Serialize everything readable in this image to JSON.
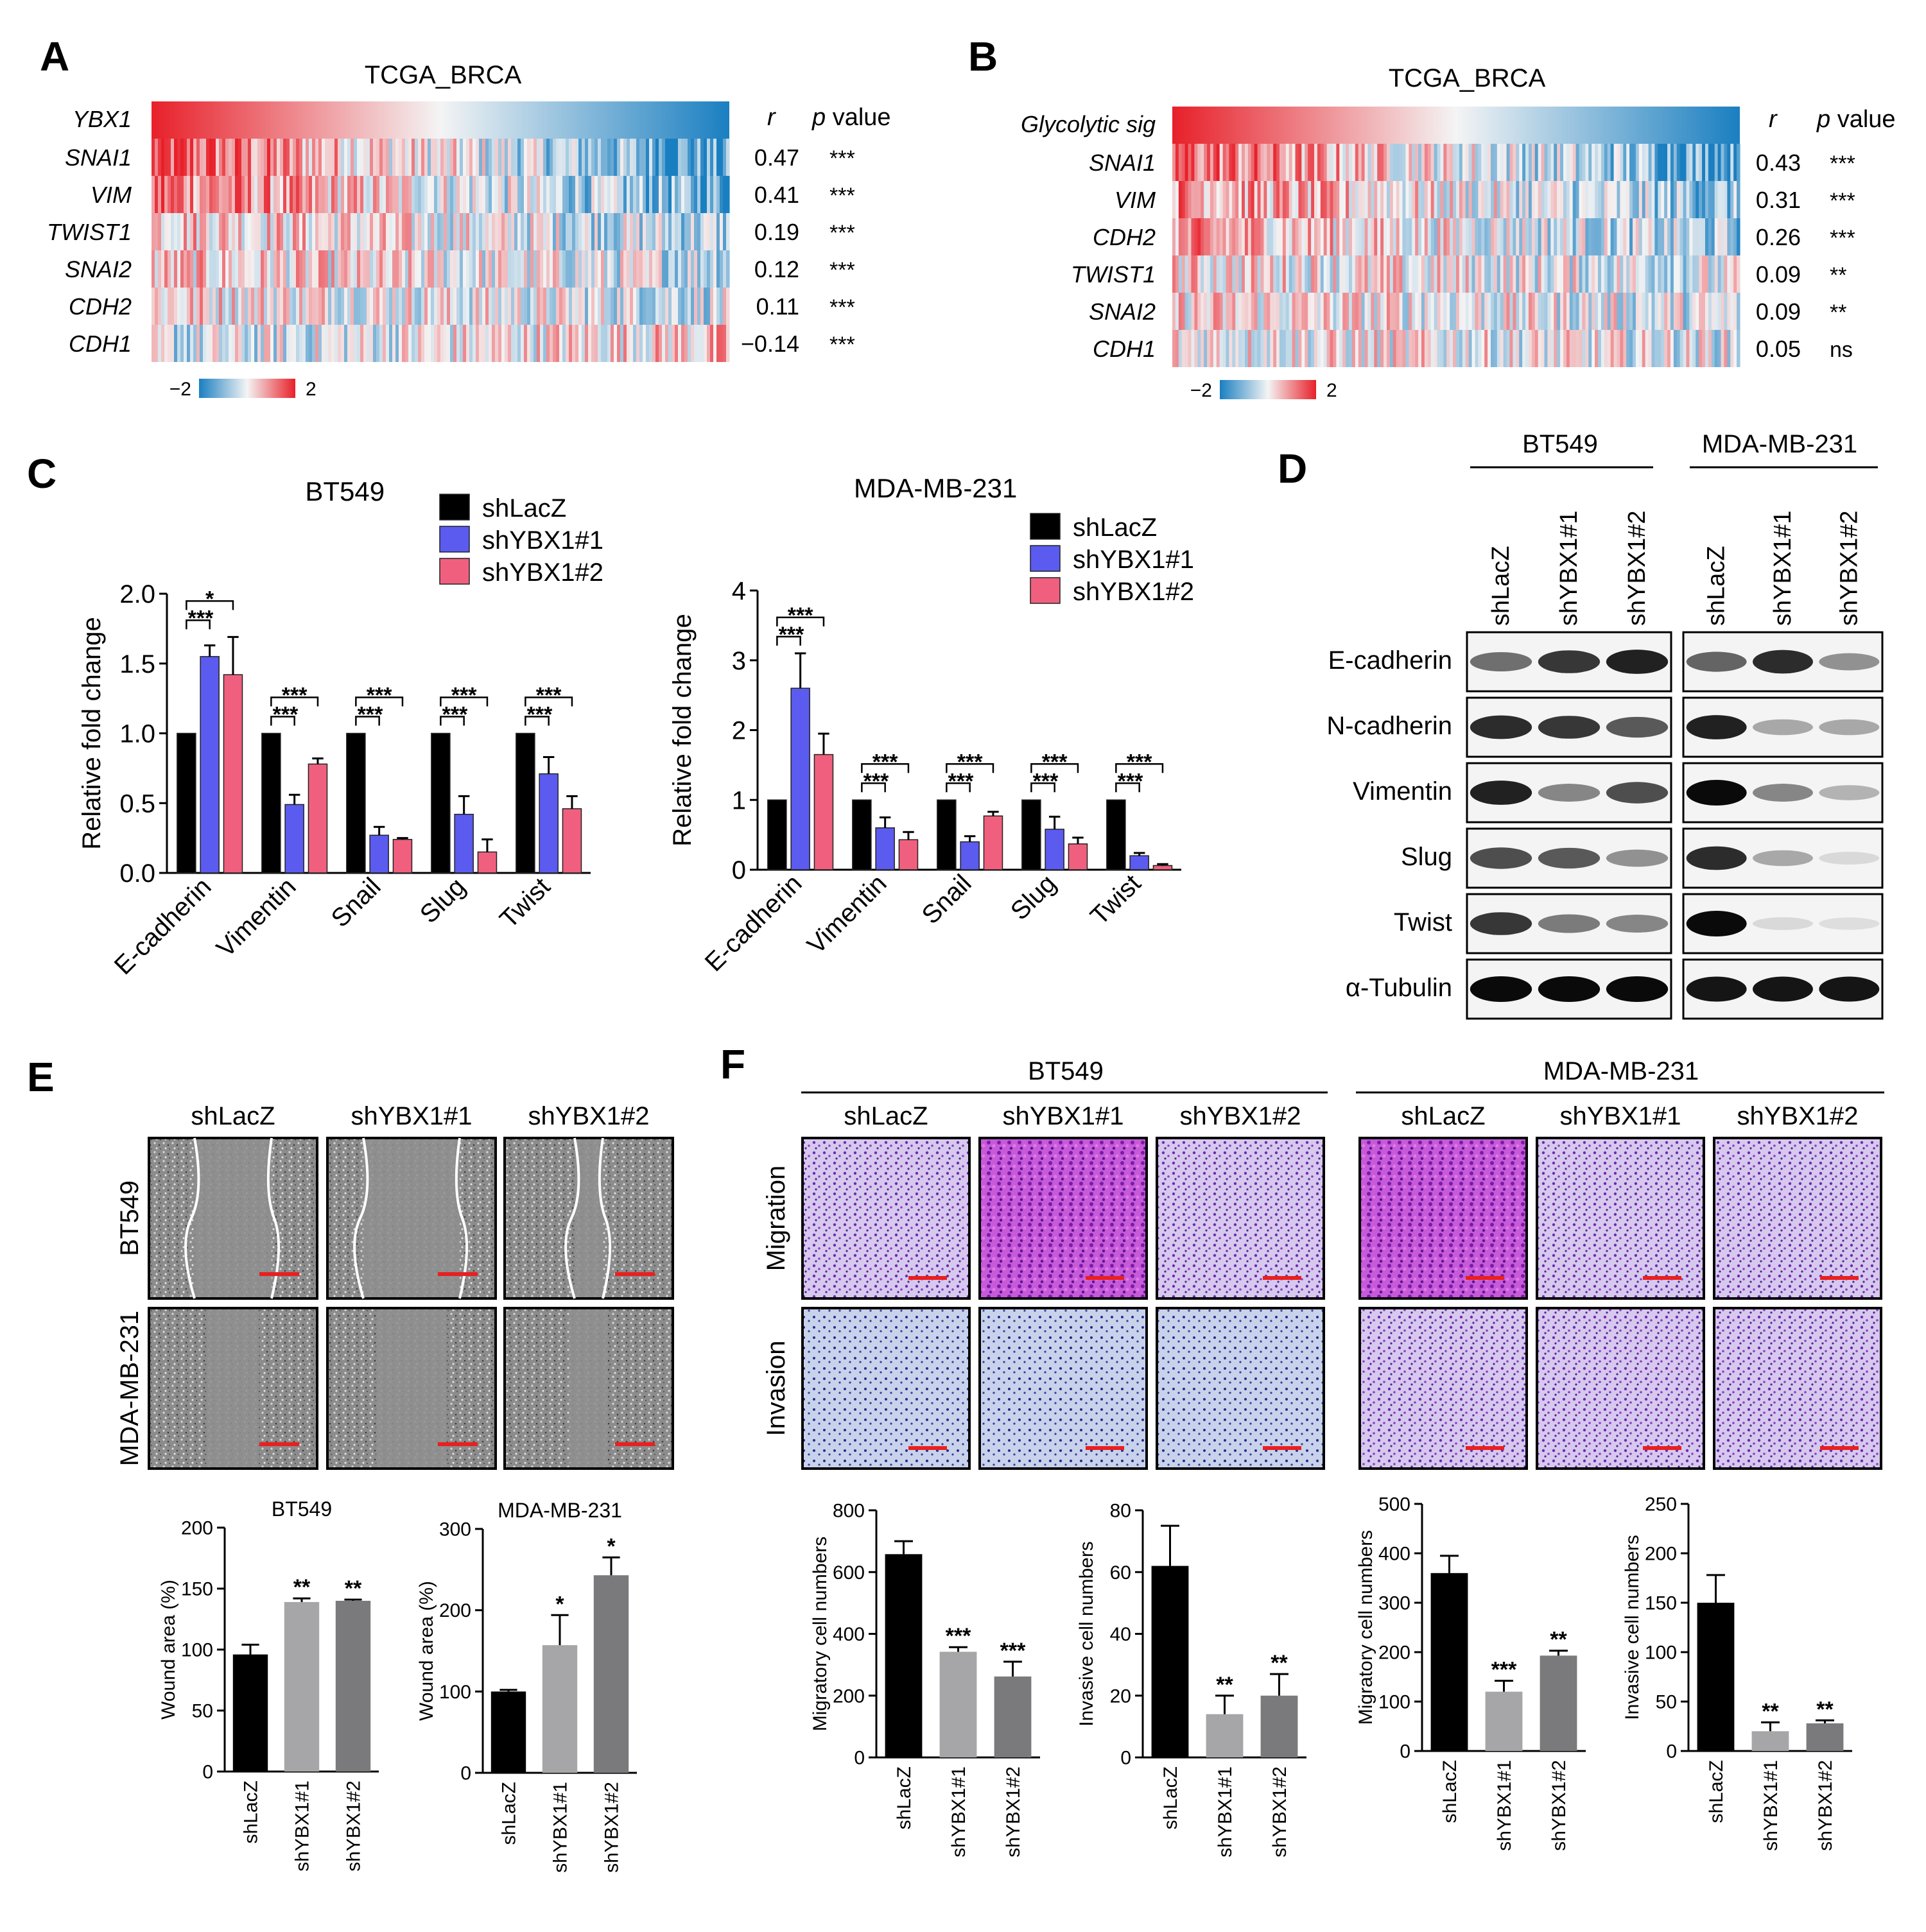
{
  "colors": {
    "heat_high": "#e8202a",
    "heat_low": "#1a7fc1",
    "heat_mid": "#f2f2f2",
    "shLacZ": "#000000",
    "shYBX1_1_blue": "#5b5bf0",
    "shYBX1_2_pink": "#f0607e",
    "gray1": "#a6a6a8",
    "gray2": "#7a7a7c",
    "scale_bar": "#e82020"
  },
  "panel_a": {
    "letter": "A",
    "title": "TCGA_BRCA",
    "top_row": "YBX1",
    "col_r": "r",
    "col_p": "p value",
    "rows": [
      {
        "gene": "SNAI1",
        "r": "0.47",
        "p": "***"
      },
      {
        "gene": "VIM",
        "r": "0.41",
        "p": "***"
      },
      {
        "gene": "TWIST1",
        "r": "0.19",
        "p": "***"
      },
      {
        "gene": "SNAI2",
        "r": "0.12",
        "p": "***"
      },
      {
        "gene": "CDH2",
        "r": "0.11",
        "p": "***"
      },
      {
        "gene": "CDH1",
        "r": "−0.14",
        "p": "***"
      }
    ],
    "legend_min": "−2",
    "legend_max": "2"
  },
  "panel_b": {
    "letter": "B",
    "title": "TCGA_BRCA",
    "top_row": "Glycolytic sig",
    "col_r": "r",
    "col_p": "p value",
    "rows": [
      {
        "gene": "SNAI1",
        "r": "0.43",
        "p": "***"
      },
      {
        "gene": "VIM",
        "r": "0.31",
        "p": "***"
      },
      {
        "gene": "CDH2",
        "r": "0.26",
        "p": "***"
      },
      {
        "gene": "TWIST1",
        "r": "0.09",
        "p": "**"
      },
      {
        "gene": "SNAI2",
        "r": "0.09",
        "p": "**"
      },
      {
        "gene": "CDH1",
        "r": "0.05",
        "p": "ns"
      }
    ],
    "legend_min": "−2",
    "legend_max": "2"
  },
  "chart_data": [
    {
      "id": "C-BT549",
      "type": "bar",
      "title": "BT549",
      "ylabel": "Relative fold change",
      "categories": [
        "E-cadherin",
        "Vimentin",
        "Snail",
        "Slug",
        "Twist"
      ],
      "series": [
        {
          "name": "shLacZ",
          "values": [
            1.0,
            1.0,
            1.0,
            1.0,
            1.0
          ],
          "errors": [
            0,
            0,
            0,
            0,
            0
          ]
        },
        {
          "name": "shYBX1#1",
          "values": [
            1.55,
            0.49,
            0.27,
            0.42,
            0.71
          ],
          "errors": [
            0.08,
            0.07,
            0.06,
            0.13,
            0.12
          ]
        },
        {
          "name": "shYBX1#2",
          "values": [
            1.42,
            0.78,
            0.24,
            0.15,
            0.46
          ],
          "errors": [
            0.27,
            0.04,
            0.01,
            0.09,
            0.09
          ]
        }
      ],
      "ylim": [
        0,
        2.0
      ],
      "yticks": [
        "0.0",
        "0.5",
        "1.0",
        "1.5",
        "2.0"
      ],
      "sig_upper": [
        "*",
        "***",
        "***",
        "***",
        "***"
      ],
      "sig_lower": [
        "***",
        "***",
        "***",
        "***",
        "***"
      ]
    },
    {
      "id": "C-MDA",
      "type": "bar",
      "title": "MDA-MB-231",
      "ylabel": "Relative fold change",
      "categories": [
        "E-cadherin",
        "Vimentin",
        "Snail",
        "Slug",
        "Twist"
      ],
      "series": [
        {
          "name": "shLacZ",
          "values": [
            1.0,
            1.0,
            1.0,
            1.0,
            1.0
          ],
          "errors": [
            0,
            0,
            0,
            0,
            0
          ]
        },
        {
          "name": "shYBX1#1",
          "values": [
            2.6,
            0.6,
            0.4,
            0.58,
            0.2
          ],
          "errors": [
            0.5,
            0.15,
            0.08,
            0.18,
            0.04
          ]
        },
        {
          "name": "shYBX1#2",
          "values": [
            1.65,
            0.43,
            0.77,
            0.37,
            0.06
          ],
          "errors": [
            0.3,
            0.11,
            0.06,
            0.09,
            0.02
          ]
        }
      ],
      "ylim": [
        0,
        4
      ],
      "yticks": [
        "0",
        "1",
        "2",
        "3",
        "4"
      ],
      "sig_upper": [
        "***",
        "***",
        "***",
        "***",
        "***"
      ],
      "sig_lower": [
        "***",
        "***",
        "***",
        "***",
        "***"
      ]
    },
    {
      "id": "E-BT549",
      "type": "bar",
      "title": "BT549",
      "ylabel": "Wound area (%)",
      "categories": [
        "shLacZ",
        "shYBX1#1",
        "shYBX1#2"
      ],
      "values": [
        96,
        139,
        140
      ],
      "errors": [
        8,
        3,
        1
      ],
      "sig": [
        "",
        "**",
        "**"
      ],
      "ylim": [
        0,
        200
      ],
      "yticks": [
        "0",
        "50",
        "100",
        "150",
        "200"
      ]
    },
    {
      "id": "E-MDA",
      "type": "bar",
      "title": "MDA-MB-231",
      "ylabel": "Wound area (%)",
      "categories": [
        "shLacZ",
        "shYBX1#1",
        "shYBX1#2"
      ],
      "values": [
        100,
        157,
        243
      ],
      "errors": [
        2,
        37,
        22
      ],
      "sig": [
        "",
        "*",
        "*"
      ],
      "ylim": [
        0,
        300
      ],
      "yticks": [
        "0",
        "100",
        "200",
        "300"
      ]
    },
    {
      "id": "F-BT549-mig",
      "type": "bar",
      "title": "",
      "ylabel": "Migratory cell numbers",
      "categories": [
        "shLacZ",
        "shYBX1#1",
        "shYBX1#2"
      ],
      "values": [
        658,
        342,
        262
      ],
      "errors": [
        42,
        15,
        48
      ],
      "sig": [
        "",
        "***",
        "***"
      ],
      "ylim": [
        0,
        800
      ],
      "yticks": [
        "0",
        "200",
        "400",
        "600",
        "800"
      ]
    },
    {
      "id": "F-BT549-inv",
      "type": "bar",
      "title": "",
      "ylabel": "Invasive cell numbers",
      "categories": [
        "shLacZ",
        "shYBX1#1",
        "shYBX1#2"
      ],
      "values": [
        62,
        14,
        20
      ],
      "errors": [
        13,
        6,
        7
      ],
      "sig": [
        "",
        "**",
        "**"
      ],
      "ylim": [
        0,
        80
      ],
      "yticks": [
        "0",
        "20",
        "40",
        "60",
        "80"
      ]
    },
    {
      "id": "F-MDA-mig",
      "type": "bar",
      "title": "",
      "ylabel": "Migratory cell numbers",
      "categories": [
        "shLacZ",
        "shYBX1#1",
        "shYBX1#2"
      ],
      "values": [
        360,
        120,
        193
      ],
      "errors": [
        35,
        22,
        10
      ],
      "sig": [
        "",
        "***",
        "**"
      ],
      "ylim": [
        0,
        500
      ],
      "yticks": [
        "0",
        "100",
        "200",
        "300",
        "400",
        "500"
      ]
    },
    {
      "id": "F-MDA-inv",
      "type": "bar",
      "title": "",
      "ylabel": "Invasive cell numbers",
      "categories": [
        "shLacZ",
        "shYBX1#1",
        "shYBX1#2"
      ],
      "values": [
        150,
        20,
        28
      ],
      "errors": [
        28,
        9,
        3
      ],
      "sig": [
        "",
        "**",
        "**"
      ],
      "ylim": [
        0,
        250
      ],
      "yticks": [
        "0",
        "50",
        "100",
        "150",
        "200",
        "250"
      ]
    }
  ],
  "panel_c": {
    "letter": "C",
    "legend": [
      "shLacZ",
      "shYBX1#1",
      "shYBX1#2"
    ]
  },
  "panel_d": {
    "letter": "D",
    "groups": [
      "BT549",
      "MDA-MB-231"
    ],
    "lanes": [
      "shLacZ",
      "shYBX1#1",
      "shYBX1#2"
    ],
    "proteins": [
      "E-cadherin",
      "N-cadherin",
      "Vimentin",
      "Slug",
      "Twist",
      "α-Tubulin"
    ],
    "band_intensity_bt549": [
      [
        0.55,
        0.8,
        0.9
      ],
      [
        0.85,
        0.8,
        0.65
      ],
      [
        0.9,
        0.45,
        0.7
      ],
      [
        0.7,
        0.65,
        0.4
      ],
      [
        0.8,
        0.5,
        0.45
      ],
      [
        1.0,
        1.0,
        1.0
      ]
    ],
    "band_intensity_mda": [
      [
        0.6,
        0.85,
        0.4
      ],
      [
        0.9,
        0.3,
        0.3
      ],
      [
        1.0,
        0.45,
        0.25
      ],
      [
        0.85,
        0.3,
        0.08
      ],
      [
        1.0,
        0.08,
        0.06
      ],
      [
        0.95,
        0.95,
        0.95
      ]
    ]
  },
  "panel_e": {
    "letter": "E",
    "columns": [
      "shLacZ",
      "shYBX1#1",
      "shYBX1#2"
    ],
    "rows": [
      "BT549",
      "MDA-MB-231"
    ]
  },
  "panel_f": {
    "letter": "F",
    "groups": [
      "BT549",
      "MDA-MB-231"
    ],
    "columns": [
      "shLacZ",
      "shYBX1#1",
      "shYBX1#2"
    ],
    "rows": [
      "Migration",
      "Invasion"
    ]
  }
}
